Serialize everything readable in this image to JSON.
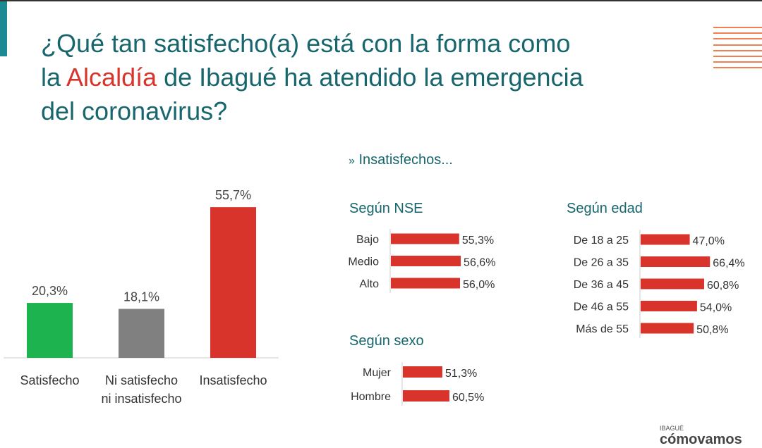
{
  "title": {
    "part1": "¿Qué tan satisfecho(a) está con la forma como",
    "part2a": "la ",
    "highlight": "Alcaldía",
    "part2b": " de Ibagué ha atendido la emergencia",
    "part3": "del coronavirus?"
  },
  "subtitle": "Insatisfechos...",
  "logo": {
    "city": "IBAGUÉ",
    "name": "cómovamos"
  },
  "colors": {
    "title": "#17666d",
    "highlight": "#d9342b",
    "satisfecho": "#1db34f",
    "neutral": "#808080",
    "insatisfecho": "#d9342b"
  },
  "chart_data": [
    {
      "type": "bar",
      "categories": [
        "Satisfecho",
        "Ni satisfecho ni insatisfecho",
        "Insatisfecho"
      ],
      "values": [
        20.3,
        18.1,
        55.7
      ],
      "labels": [
        "20,3%",
        "18,1%",
        "55,7%"
      ],
      "colors": [
        "#1db34f",
        "#808080",
        "#d9342b"
      ]
    },
    {
      "type": "bar",
      "orientation": "horizontal",
      "title": "Según NSE",
      "categories": [
        "Bajo",
        "Medio",
        "Alto"
      ],
      "values": [
        55.3,
        56.6,
        56.0
      ],
      "labels": [
        "55,3%",
        "56,6%",
        "56,0%"
      ]
    },
    {
      "type": "bar",
      "orientation": "horizontal",
      "title": "Según edad",
      "categories": [
        "De 18 a 25",
        "De 26 a 35",
        "De 36 a 45",
        "De 46 a 55",
        "Más de 55"
      ],
      "values": [
        47.0,
        66.4,
        60.8,
        54.0,
        50.8
      ],
      "labels": [
        "47,0%",
        "66,4%",
        "60,8%",
        "54,0%",
        "50,8%"
      ]
    },
    {
      "type": "bar",
      "orientation": "horizontal",
      "title": "Según sexo",
      "categories": [
        "Mujer",
        "Hombre"
      ],
      "values": [
        51.3,
        60.5
      ],
      "labels": [
        "51,3%",
        "60,5%"
      ]
    }
  ]
}
